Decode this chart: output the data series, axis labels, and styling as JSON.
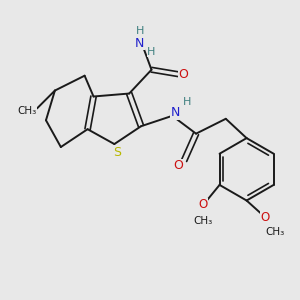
{
  "background_color": "#e8e8e8",
  "bond_color": "#1a1a1a",
  "S_color": "#b8b800",
  "N_color": "#2020cc",
  "O_color": "#cc1010",
  "H_color": "#408080",
  "figsize": [
    3.0,
    3.0
  ],
  "dpi": 100,
  "xlim": [
    0,
    10
  ],
  "ylim": [
    0,
    10
  ]
}
